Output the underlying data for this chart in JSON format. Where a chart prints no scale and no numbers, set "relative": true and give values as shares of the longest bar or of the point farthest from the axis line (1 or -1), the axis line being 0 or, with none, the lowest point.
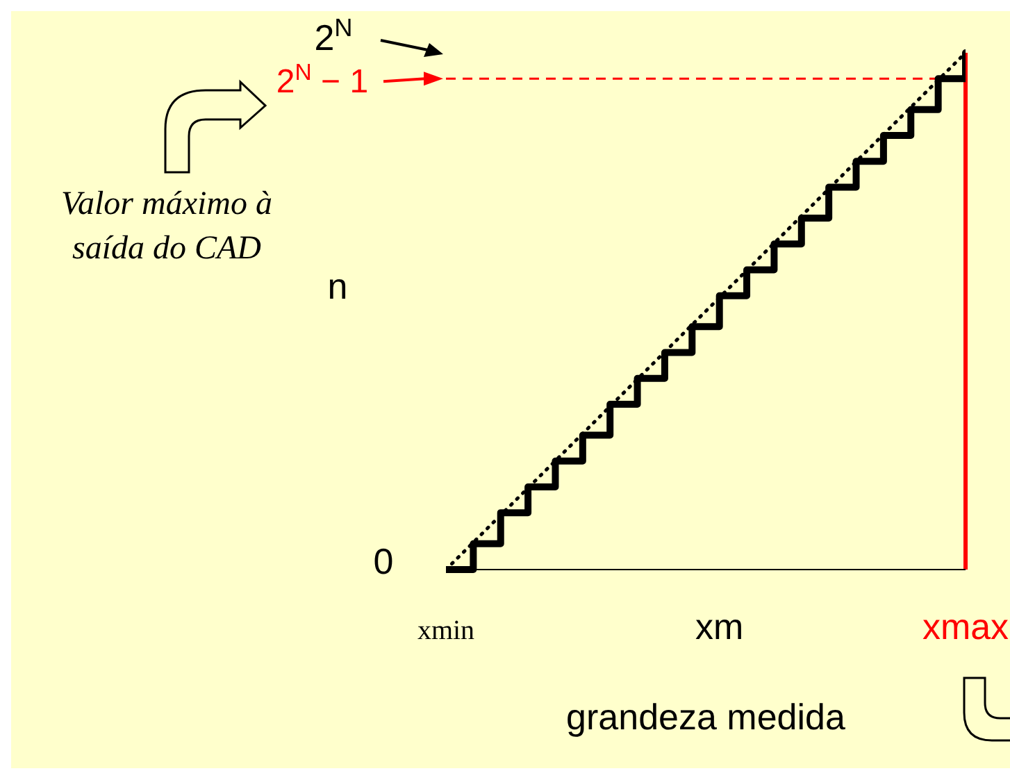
{
  "chart_data": {
    "type": "step",
    "relative": true,
    "xlabel": "grandeza medida",
    "ylabel": "n",
    "categories": [
      "xmin",
      null,
      null,
      null,
      null,
      null,
      null,
      null,
      null,
      null,
      "xm",
      null,
      null,
      null,
      null,
      null,
      null,
      null,
      null,
      "xmax"
    ],
    "series": [
      {
        "color": "#000000",
        "values": [
          0,
          0.05,
          0.11,
          0.16,
          0.21,
          0.26,
          0.32,
          0.37,
          0.42,
          0.47,
          0.53,
          0.58,
          0.63,
          0.68,
          0.74,
          0.79,
          0.84,
          0.89,
          0.95,
          1
        ]
      },
      {
        "type": "line",
        "color": "#000000",
        "line_style": "dotted",
        "values": [
          0,
          null,
          null,
          null,
          null,
          null,
          null,
          null,
          null,
          null,
          null,
          null,
          null,
          null,
          null,
          null,
          null,
          null,
          null,
          1
        ]
      }
    ],
    "ref_lines": [
      {
        "axis": "y",
        "value": 0.95,
        "label": "2$^{N}$ − 1",
        "color": "#ff0000",
        "line_style": "dashed"
      },
      {
        "axis": "x",
        "value": "xmax",
        "color": "#ff0000"
      }
    ],
    "annotations": [
      "0",
      "2$^{N}$",
      "Valor máximo à saída do CAD"
    ],
    "legend": false,
    "grid": false
  }
}
